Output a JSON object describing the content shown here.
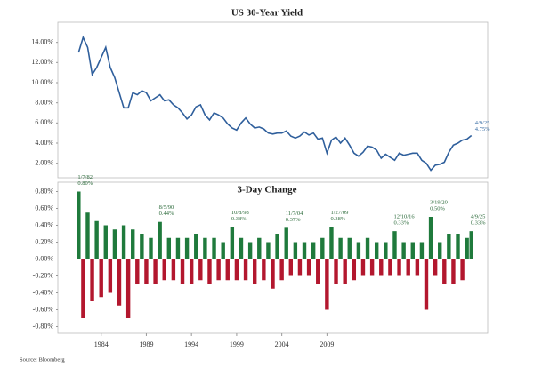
{
  "chart_data": [
    {
      "type": "line",
      "title": "US 30-Year Yield",
      "color": "#2f5f9c",
      "x": [
        1981.5,
        1982,
        1982.5,
        1983,
        1983.5,
        1984,
        1984.5,
        1985,
        1985.5,
        1986,
        1986.5,
        1987,
        1987.5,
        1988,
        1988.5,
        1989,
        1989.5,
        1990,
        1990.5,
        1991,
        1991.5,
        1992,
        1992.5,
        1993,
        1993.5,
        1994,
        1994.5,
        1995,
        1995.5,
        1996,
        1996.5,
        1997,
        1997.5,
        1998,
        1998.5,
        1999,
        1999.5,
        2000,
        2000.5,
        2001,
        2001.5,
        2002,
        2002.5,
        2003,
        2003.5,
        2004,
        2004.5,
        2005,
        2005.5,
        2006,
        2006.5,
        2007,
        2007.5,
        2008,
        2008.5,
        2009,
        2009.5,
        2010,
        2010.5,
        2011,
        2011.5,
        2012,
        2012.5,
        2013,
        2013.5,
        2014,
        2014.5,
        2015,
        2015.5,
        2016,
        2016.5,
        2017,
        2017.5,
        2018,
        2018.5,
        2019,
        2019.5,
        2020,
        2020.5,
        2021,
        2021.5,
        2022,
        2022.5,
        2023,
        2023.5,
        2024,
        2024.5,
        2025
      ],
      "values": [
        13.0,
        14.5,
        13.5,
        10.8,
        11.5,
        12.5,
        13.5,
        11.5,
        10.5,
        9.0,
        7.5,
        7.5,
        9.0,
        8.8,
        9.2,
        9.0,
        8.2,
        8.5,
        8.8,
        8.2,
        8.3,
        7.8,
        7.5,
        7.0,
        6.4,
        6.8,
        7.6,
        7.8,
        6.8,
        6.3,
        7.0,
        6.8,
        6.5,
        5.9,
        5.5,
        5.3,
        6.0,
        6.5,
        5.9,
        5.5,
        5.6,
        5.4,
        5.0,
        4.9,
        5.0,
        5.0,
        5.2,
        4.7,
        4.5,
        4.7,
        5.1,
        4.8,
        5.0,
        4.4,
        4.5,
        3.0,
        4.3,
        4.6,
        4.0,
        4.5,
        3.8,
        3.0,
        2.7,
        3.1,
        3.7,
        3.6,
        3.3,
        2.5,
        2.9,
        2.6,
        2.3,
        3.0,
        2.8,
        2.9,
        3.0,
        3.0,
        2.3,
        2.0,
        1.3,
        1.8,
        1.9,
        2.1,
        3.1,
        3.8,
        4.0,
        4.3,
        4.4,
        4.75
      ],
      "xlim": [
        1979.2,
        2026.8
      ],
      "ylim": [
        1,
        16
      ],
      "yticks": [
        {
          "value": 2,
          "label": "2.00%"
        },
        {
          "value": 4,
          "label": "4.00%"
        },
        {
          "value": 6,
          "label": "6.00%"
        },
        {
          "value": 8,
          "label": "8.00%"
        },
        {
          "value": 10,
          "label": "10.00%"
        },
        {
          "value": 12,
          "label": "12.00%"
        },
        {
          "value": 14,
          "label": "14.00%"
        }
      ],
      "annotations": [
        {
          "x": 2025,
          "y": 4.75,
          "date": "4/9/25",
          "label": "4.75%"
        }
      ]
    },
    {
      "type": "bar",
      "title": "3-Day Change",
      "pos_color": "#1f7a3c",
      "neg_color": "#b3172e",
      "x": [
        1981.5,
        1982,
        1982.5,
        1983,
        1983.5,
        1984,
        1984.5,
        1985,
        1985.5,
        1986,
        1986.5,
        1987,
        1987.5,
        1988,
        1988.5,
        1989,
        1989.5,
        1990,
        1990.5,
        1991,
        1991.5,
        1992,
        1992.5,
        1993,
        1993.5,
        1994,
        1994.5,
        1995,
        1995.5,
        1996,
        1996.5,
        1997,
        1997.5,
        1998,
        1998.5,
        1999,
        1999.5,
        2000,
        2000.5,
        2001,
        2001.5,
        2002,
        2002.5,
        2003,
        2003.5,
        2004,
        2004.5,
        2005,
        2005.5,
        2006,
        2006.5,
        2007,
        2007.5,
        2008,
        2008.5,
        2009,
        2009.5,
        2010,
        2010.5,
        2011,
        2011.5,
        2012,
        2012.5,
        2013,
        2013.5,
        2014,
        2014.5,
        2015,
        2015.5,
        2016,
        2016.5,
        2017,
        2017.5,
        2018,
        2018.5,
        2019,
        2019.5,
        2020,
        2020.5,
        2021,
        2021.5,
        2022,
        2022.5,
        2023,
        2023.5,
        2024,
        2024.5,
        2025
      ],
      "values": [
        0.8,
        -0.7,
        0.55,
        -0.5,
        0.45,
        -0.45,
        0.4,
        -0.4,
        0.35,
        -0.55,
        0.4,
        -0.7,
        0.35,
        -0.3,
        0.3,
        -0.3,
        0.25,
        -0.3,
        0.44,
        -0.25,
        0.25,
        -0.25,
        0.25,
        -0.3,
        0.25,
        -0.3,
        0.3,
        -0.25,
        0.25,
        -0.3,
        0.25,
        -0.25,
        0.2,
        -0.25,
        0.38,
        -0.25,
        0.25,
        -0.25,
        0.2,
        -0.3,
        0.25,
        -0.25,
        0.2,
        -0.35,
        0.3,
        -0.25,
        0.37,
        -0.2,
        0.2,
        -0.2,
        0.2,
        -0.2,
        0.2,
        -0.3,
        0.25,
        -0.6,
        0.38,
        -0.3,
        0.25,
        -0.3,
        0.25,
        -0.25,
        0.2,
        -0.2,
        0.25,
        -0.2,
        0.2,
        -0.2,
        0.2,
        -0.2,
        0.33,
        -0.2,
        0.2,
        -0.2,
        0.2,
        -0.2,
        0.2,
        -0.6,
        0.5,
        -0.2,
        0.2,
        -0.3,
        0.3,
        -0.3,
        0.3,
        -0.25,
        0.25,
        0.33
      ],
      "xlim": [
        1979.2,
        2026.8
      ],
      "ylim": [
        -0.9,
        0.9
      ],
      "yticks": [
        {
          "value": -0.8,
          "label": "-0.80%"
        },
        {
          "value": -0.6,
          "label": "-0.60%"
        },
        {
          "value": -0.4,
          "label": "-0.40%"
        },
        {
          "value": -0.2,
          "label": "-0.20%"
        },
        {
          "value": 0,
          "label": "0.00%"
        },
        {
          "value": 0.2,
          "label": "0.20%"
        },
        {
          "value": 0.4,
          "label": "0.40%"
        },
        {
          "value": 0.6,
          "label": "0.60%"
        },
        {
          "value": 0.8,
          "label": "0.80%"
        }
      ],
      "xticks": [
        1984,
        1989,
        1994,
        1999,
        2004,
        2009
      ],
      "annotations": [
        {
          "x": 1981.5,
          "y": 0.8,
          "date": "1/7/82",
          "label": "0.80%"
        },
        {
          "x": 1990.5,
          "y": 0.44,
          "date": "8/5/90",
          "label": "0.44%"
        },
        {
          "x": 1998.5,
          "y": 0.38,
          "date": "10/8/98",
          "label": "0.38%"
        },
        {
          "x": 2004.5,
          "y": 0.37,
          "date": "11/7/04",
          "label": "0.37%"
        },
        {
          "x": 2009.5,
          "y": 0.38,
          "date": "1/27/09",
          "label": "0.38%"
        },
        {
          "x": 2016.5,
          "y": 0.33,
          "date": "12/10/16",
          "label": "0.33%"
        },
        {
          "x": 2020.5,
          "y": 0.5,
          "date": "3/19/20",
          "label": "0.50%"
        },
        {
          "x": 2025,
          "y": 0.33,
          "date": "4/9/25",
          "label": "0.33%"
        }
      ],
      "source": "Source: Bloomberg"
    }
  ]
}
